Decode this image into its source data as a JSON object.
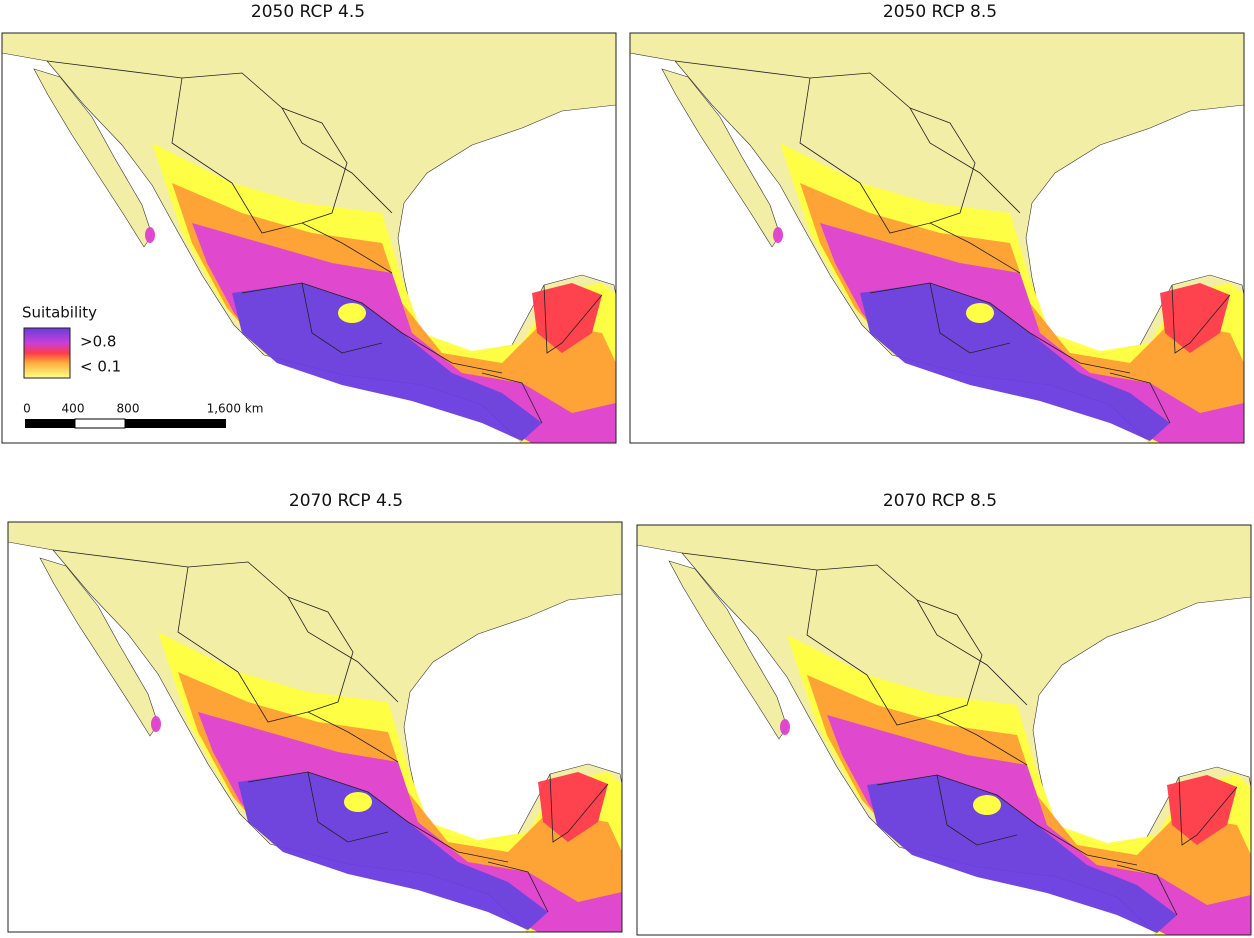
{
  "panels": [
    {
      "title": "2050 RCP 4.5"
    },
    {
      "title": "2050 RCP 8.5"
    },
    {
      "title": "2070 RCP 4.5"
    },
    {
      "title": "2070 RCP 8.5"
    }
  ],
  "legend": {
    "title": "Suitability",
    "labels": [
      ">0.8",
      "< 0.1"
    ]
  },
  "scalebar": {
    "labels": [
      "0",
      "400",
      "800",
      "1,600 km"
    ]
  }
}
